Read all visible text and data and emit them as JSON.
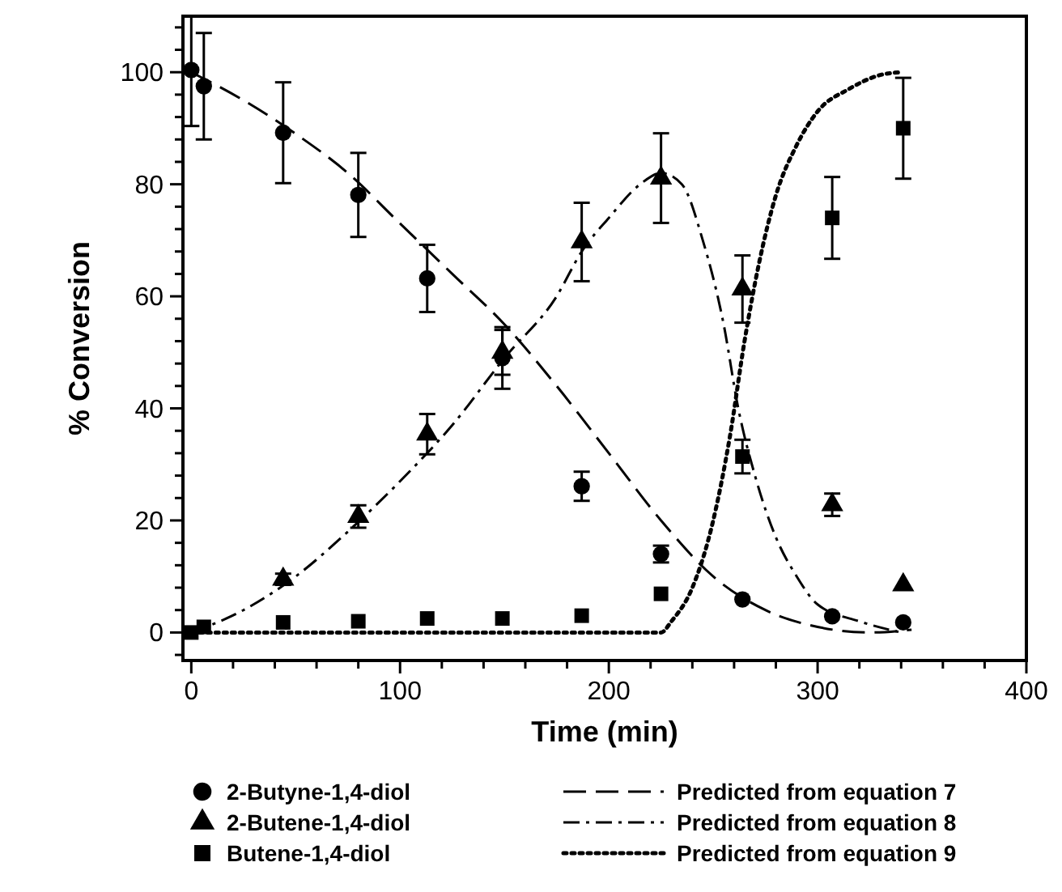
{
  "chart_data": {
    "type": "scatter",
    "xlabel": "Time (min)",
    "ylabel": "% Conversion",
    "xlim": [
      -4,
      400
    ],
    "ylim": [
      -5,
      110
    ],
    "xticks": [
      0,
      {
        "value": 20,
        "label": null
      },
      {
        "value": 40,
        "label": null
      },
      {
        "value": 60,
        "label": null
      },
      {
        "value": 80,
        "label": null
      },
      100,
      {
        "value": 120,
        "label": null
      },
      {
        "value": 140,
        "label": null
      },
      {
        "value": 160,
        "label": null
      },
      {
        "value": 180,
        "label": null
      },
      200,
      {
        "value": 220,
        "label": null
      },
      {
        "value": 240,
        "label": null
      },
      {
        "value": 260,
        "label": null
      },
      {
        "value": 280,
        "label": null
      },
      300,
      {
        "value": 320,
        "label": null
      },
      {
        "value": 340,
        "label": null
      },
      {
        "value": 360,
        "label": null
      },
      {
        "value": 380,
        "label": null
      },
      400
    ],
    "yticks": [
      {
        "value": -4,
        "label": null
      },
      0,
      {
        "value": 4,
        "label": null
      },
      {
        "value": 8,
        "label": null
      },
      {
        "value": 12,
        "label": null
      },
      {
        "value": 16,
        "label": null
      },
      20,
      {
        "value": 24,
        "label": null
      },
      {
        "value": 28,
        "label": null
      },
      {
        "value": 32,
        "label": null
      },
      {
        "value": 36,
        "label": null
      },
      40,
      {
        "value": 44,
        "label": null
      },
      {
        "value": 48,
        "label": null
      },
      {
        "value": 52,
        "label": null
      },
      {
        "value": 56,
        "label": null
      },
      60,
      {
        "value": 64,
        "label": null
      },
      {
        "value": 68,
        "label": null
      },
      {
        "value": 72,
        "label": null
      },
      {
        "value": 76,
        "label": null
      },
      80,
      {
        "value": 84,
        "label": null
      },
      {
        "value": 88,
        "label": null
      },
      {
        "value": 92,
        "label": null
      },
      {
        "value": 96,
        "label": null
      },
      100,
      {
        "value": 104,
        "label": null
      },
      {
        "value": 108,
        "label": null
      }
    ],
    "grid": false,
    "legend": "bottom",
    "series": [
      {
        "name": "2-Butyne-1,4-diol",
        "marker": "circle",
        "color": "#000000",
        "x": [
          0,
          6,
          44,
          80,
          113,
          149,
          187,
          225,
          264,
          307,
          341
        ],
        "values": [
          100.4,
          97.5,
          89.2,
          78.1,
          63.2,
          49,
          26.1,
          14,
          5.9,
          2.9,
          1.8
        ],
        "errors": [
          10,
          9.5,
          9,
          7.5,
          6,
          5.5,
          2.6,
          1.5,
          null,
          null,
          null
        ]
      },
      {
        "name": "2-Butene-1,4-diol",
        "marker": "triangle",
        "color": "#000000",
        "x": [
          44,
          80,
          113,
          149,
          187,
          225,
          264,
          307,
          341
        ],
        "values": [
          9.5,
          20.7,
          35.4,
          50,
          69.7,
          81.1,
          61.3,
          22.8,
          8.5
        ],
        "errors": [
          1,
          2,
          3.6,
          4,
          7,
          8,
          6,
          2,
          null
        ]
      },
      {
        "name": "Butene-1,4-diol",
        "marker": "square",
        "color": "#000000",
        "x": [
          0,
          6,
          44,
          80,
          113,
          149,
          187,
          225,
          264,
          307,
          341
        ],
        "values": [
          0,
          1,
          1.8,
          2,
          2.5,
          2.5,
          3,
          6.9,
          31.4,
          74,
          90
        ],
        "errors": [
          null,
          null,
          null,
          null,
          null,
          null,
          null,
          null,
          3,
          7.3,
          9
        ]
      },
      {
        "name": "Predicted from equation 7",
        "type": "line",
        "line_style": "dashed",
        "color": "#000000",
        "x": [
          0,
          25,
          50,
          75,
          100,
          125,
          150,
          175,
          200,
          225,
          250,
          275,
          300,
          325,
          345
        ],
        "values": [
          100,
          95,
          89,
          82,
          73,
          64,
          55,
          44,
          32,
          20,
          10,
          4,
          1,
          0,
          0.5
        ]
      },
      {
        "name": "Predicted from equation 8",
        "type": "line",
        "line_style": "dashdot",
        "color": "#000000",
        "x": [
          0,
          25,
          50,
          75,
          100,
          125,
          150,
          175,
          187,
          200,
          215,
          225,
          235,
          245,
          255,
          262,
          270,
          280,
          290,
          300,
          320,
          340
        ],
        "values": [
          0,
          4,
          10,
          18,
          27,
          37,
          49,
          60,
          68,
          74,
          80,
          82,
          80,
          70,
          55,
          40,
          28,
          17,
          10,
          5,
          2,
          0
        ]
      },
      {
        "name": "Predicted from equation 9",
        "type": "line",
        "line_style": "dotted",
        "color": "#000000",
        "x": [
          0,
          100,
          200,
          225,
          230,
          240,
          250,
          258,
          265,
          272,
          280,
          290,
          300,
          315,
          330,
          340
        ],
        "values": [
          0,
          0,
          0,
          0,
          2,
          8,
          20,
          35,
          52,
          66,
          78,
          87,
          93,
          97,
          99.5,
          100
        ]
      }
    ]
  }
}
